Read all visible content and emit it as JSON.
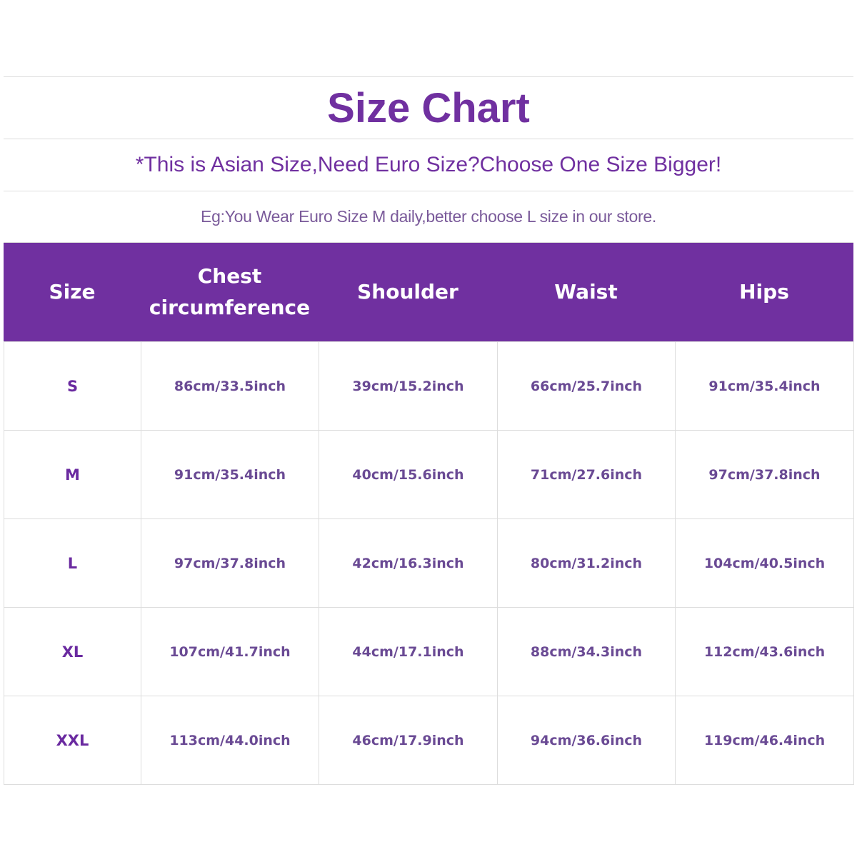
{
  "title": "Size Chart",
  "subtitle": "*This is Asian Size,Need Euro Size?Choose One Size Bigger!",
  "note": "Eg:You Wear Euro Size M daily,better choose L size in our store.",
  "colors": {
    "header_bg": "#7030a0",
    "title": "#7030a0",
    "cell_text": "#6a4a94"
  },
  "headers": [
    "Size",
    "Chest circumference",
    "Shoulder",
    "Waist",
    "Hips"
  ],
  "rows": [
    [
      "S",
      "86cm/33.5inch",
      "39cm/15.2inch",
      "66cm/25.7inch",
      "91cm/35.4inch"
    ],
    [
      "M",
      "91cm/35.4inch",
      "40cm/15.6inch",
      "71cm/27.6inch",
      "97cm/37.8inch"
    ],
    [
      "L",
      "97cm/37.8inch",
      "42cm/16.3inch",
      "80cm/31.2inch",
      "104cm/40.5inch"
    ],
    [
      "XL",
      "107cm/41.7inch",
      "44cm/17.1inch",
      "88cm/34.3inch",
      "112cm/43.6inch"
    ],
    [
      "XXL",
      "113cm/44.0inch",
      "46cm/17.9inch",
      "94cm/36.6inch",
      "119cm/46.4inch"
    ]
  ]
}
